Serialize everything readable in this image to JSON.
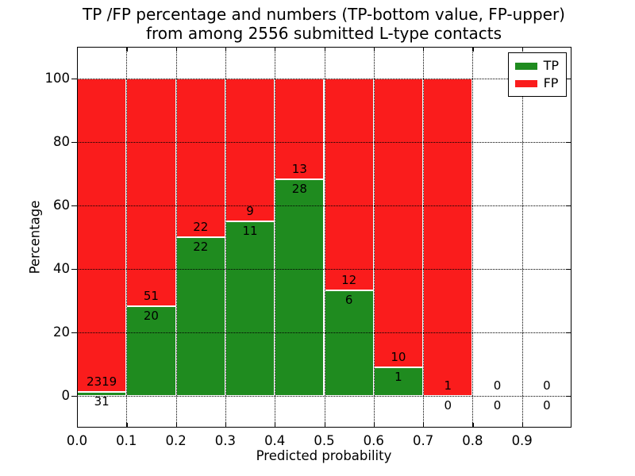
{
  "figure": {
    "title_line1": "TP /FP percentage and numbers (TP-bottom value, FP-upper)",
    "title_line2": "from among 2556 submitted L-type contacts"
  },
  "chart_data": {
    "type": "bar",
    "stacked": true,
    "title": "TP /FP percentage and numbers (TP-bottom value, FP-upper) from among 2556 submitted L-type contacts",
    "xlabel": "Predicted probability",
    "ylabel": "Percentage",
    "xlim": [
      0.0,
      1.0
    ],
    "ylim": [
      -10,
      110
    ],
    "xticks": [
      "0.0",
      "0.1",
      "0.2",
      "0.3",
      "0.4",
      "0.5",
      "0.6",
      "0.7",
      "0.8",
      "0.9"
    ],
    "yticks": [
      0,
      20,
      40,
      60,
      80,
      100
    ],
    "grid": "dotted",
    "bar_width": 0.1,
    "total_contacts": 2556,
    "categories": [
      "0.0-0.1",
      "0.1-0.2",
      "0.2-0.3",
      "0.3-0.4",
      "0.4-0.5",
      "0.5-0.6",
      "0.6-0.7",
      "0.7-0.8",
      "0.8-0.9",
      "0.9-1.0"
    ],
    "series": [
      {
        "name": "TP",
        "color": "#1f8b1f",
        "counts": [
          31,
          20,
          22,
          11,
          28,
          6,
          1,
          0,
          0,
          0
        ],
        "pct": [
          1.32,
          28.17,
          50.0,
          55.0,
          68.29,
          33.33,
          9.09,
          0.0,
          0.0,
          0.0
        ]
      },
      {
        "name": "FP",
        "color": "#fa1c1c",
        "counts": [
          2319,
          51,
          22,
          9,
          13,
          12,
          10,
          1,
          0,
          0
        ],
        "pct": [
          98.68,
          71.83,
          50.0,
          45.0,
          31.71,
          66.67,
          90.91,
          100.0,
          0.0,
          0.0
        ]
      }
    ],
    "legend": {
      "position": "upper right",
      "entries": [
        "TP",
        "FP"
      ]
    }
  }
}
